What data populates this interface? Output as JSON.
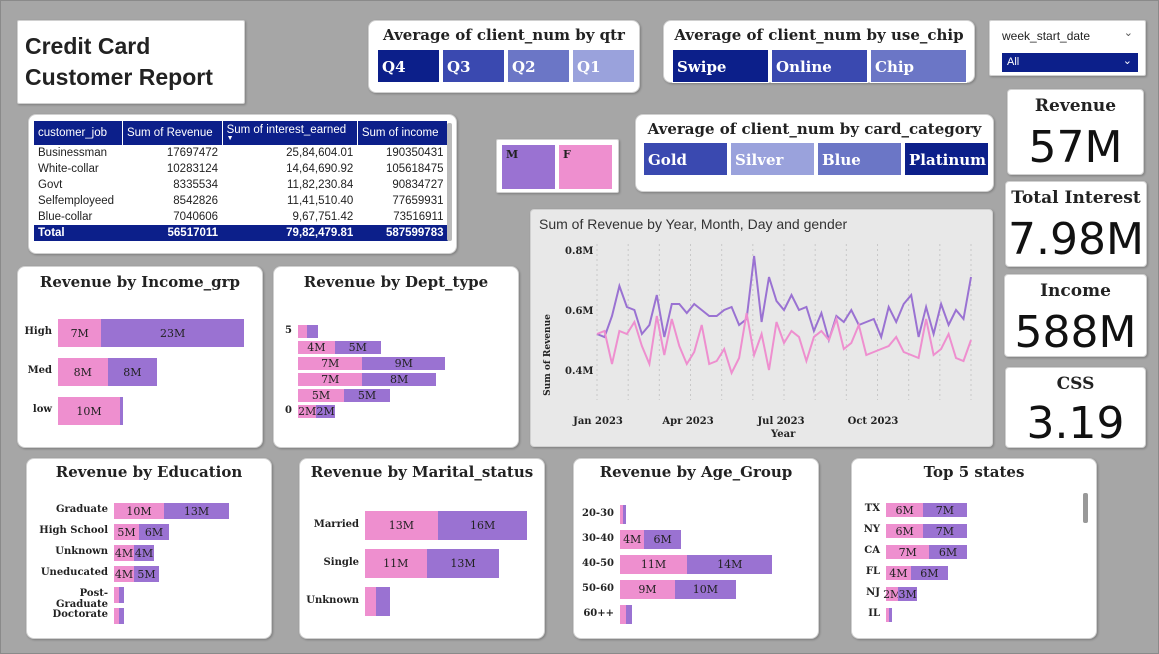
{
  "title": {
    "line1": "Credit Card",
    "line2": "Customer Report"
  },
  "slicers": {
    "qtr": {
      "title": "Average of client_num by qtr",
      "items": [
        "Q4",
        "Q3",
        "Q2",
        "Q1"
      ],
      "colors": [
        "#0c1f8a",
        "#3a49b0",
        "#6b76c6",
        "#9aa2dc"
      ]
    },
    "use_chip": {
      "title": "Average of client_num by use_chip",
      "items": [
        "Swipe",
        "Online",
        "Chip"
      ],
      "colors": [
        "#0c1f8a",
        "#3a49b0",
        "#6b76c6"
      ]
    },
    "card_category": {
      "title": "Average of client_num by card_category",
      "items": [
        "Gold",
        "Silver",
        "Blue",
        "Platinum"
      ],
      "colors": [
        "#3a49b0",
        "#9aa2dc",
        "#6b76c6",
        "#0c1f8a"
      ]
    },
    "gender": {
      "items": [
        "M",
        "F"
      ],
      "colors": [
        "#9a72d2",
        "#ee8fcf"
      ]
    }
  },
  "date_filter": {
    "label": "week_start_date",
    "value": "All"
  },
  "table": {
    "headers": [
      "customer_job",
      "Sum of Revenue",
      "Sum of interest_earned",
      "Sum of income"
    ],
    "rows": [
      [
        "Businessman",
        "17697472",
        "25,84,604.01",
        "190350431"
      ],
      [
        "White-collar",
        "10283124",
        "14,64,690.92",
        "105618475"
      ],
      [
        "Govt",
        "8335534",
        "11,82,230.84",
        "90834727"
      ],
      [
        "Selfemployeed",
        "8542826",
        "11,41,510.40",
        "77659931"
      ],
      [
        "Blue-collar",
        "7040606",
        "9,67,751.42",
        "73516911"
      ]
    ],
    "total": [
      "Total",
      "56517011",
      "79,82,479.81",
      "587599783"
    ]
  },
  "kpis": [
    {
      "label": "Revenue",
      "value": "57M"
    },
    {
      "label": "Total Interest",
      "value": "7.98M"
    },
    {
      "label": "Income",
      "value": "588M"
    },
    {
      "label": "CSS",
      "value": "3.19"
    }
  ],
  "line_chart": {
    "title": "Sum of Revenue by Year, Month, Day and gender",
    "xlabel": "Year",
    "ylabel": "Sum of Revenue",
    "yticks": [
      "0.8M",
      "0.6M",
      "0.4M"
    ],
    "xticks": [
      "Jan 2023",
      "Apr 2023",
      "Jul 2023",
      "Oct 2023"
    ]
  },
  "chart_data": [
    {
      "type": "bar",
      "title": "Revenue by Income_grp",
      "categories": [
        "High",
        "Med",
        "low"
      ],
      "series": [
        {
          "name": "F",
          "values": [
            7,
            8,
            10
          ],
          "labels": [
            "7M",
            "8M",
            "10M"
          ]
        },
        {
          "name": "M",
          "values": [
            23,
            8,
            0.3
          ],
          "labels": [
            "23M",
            "8M",
            ""
          ]
        }
      ]
    },
    {
      "type": "bar",
      "title": "Revenue by Dept_type",
      "categories": [
        "5",
        "",
        "",
        "",
        "",
        "0"
      ],
      "series": [
        {
          "name": "F",
          "values": [
            1,
            4,
            7,
            7,
            5,
            2
          ],
          "labels": [
            "",
            "4M",
            "7M",
            "7M",
            "5M",
            "2M"
          ]
        },
        {
          "name": "M",
          "values": [
            1.2,
            5,
            9,
            8,
            5,
            2
          ],
          "labels": [
            "",
            "5M",
            "9M",
            "8M",
            "5M",
            "2M"
          ]
        }
      ]
    },
    {
      "type": "bar",
      "title": "Revenue by Education",
      "categories": [
        "Graduate",
        "High School",
        "Unknown",
        "Uneducated",
        "Post-Graduate",
        "Doctorate"
      ],
      "series": [
        {
          "name": "F",
          "values": [
            10,
            5,
            4,
            4,
            1,
            1
          ],
          "labels": [
            "10M",
            "5M",
            "4M",
            "4M",
            "",
            ""
          ]
        },
        {
          "name": "M",
          "values": [
            13,
            6,
            4,
            5,
            1,
            1
          ],
          "labels": [
            "13M",
            "6M",
            "4M",
            "5M",
            "",
            ""
          ]
        }
      ]
    },
    {
      "type": "bar",
      "title": "Revenue by Marital_status",
      "categories": [
        "Married",
        "Single",
        "Unknown"
      ],
      "series": [
        {
          "name": "F",
          "values": [
            13,
            11,
            2
          ],
          "labels": [
            "13M",
            "11M",
            ""
          ]
        },
        {
          "name": "M",
          "values": [
            16,
            13,
            2.5
          ],
          "labels": [
            "16M",
            "13M",
            ""
          ]
        }
      ]
    },
    {
      "type": "bar",
      "title": "Revenue by Age_Group",
      "categories": [
        "20-30",
        "30-40",
        "40-50",
        "50-60",
        "60++"
      ],
      "series": [
        {
          "name": "F",
          "values": [
            0.5,
            4,
            11,
            9,
            1
          ],
          "labels": [
            "",
            "4M",
            "11M",
            "9M",
            ""
          ]
        },
        {
          "name": "M",
          "values": [
            0.5,
            6,
            14,
            10,
            1
          ],
          "labels": [
            "",
            "6M",
            "14M",
            "10M",
            ""
          ]
        }
      ]
    },
    {
      "type": "bar",
      "title": "Top 5 states",
      "categories": [
        "TX",
        "NY",
        "CA",
        "FL",
        "NJ",
        "IL"
      ],
      "series": [
        {
          "name": "F",
          "values": [
            6,
            6,
            7,
            4,
            2,
            0.3
          ],
          "labels": [
            "6M",
            "6M",
            "7M",
            "4M",
            "2M",
            ""
          ]
        },
        {
          "name": "M",
          "values": [
            7,
            7,
            6,
            6,
            3,
            0.3
          ],
          "labels": [
            "7M",
            "7M",
            "6M",
            "6M",
            "3M",
            ""
          ]
        }
      ]
    },
    {
      "type": "line",
      "title": "Sum of Revenue by Year, Month, Day and gender",
      "ylim": [
        0.3,
        0.82
      ],
      "series": [
        {
          "name": "M",
          "color": "#9a72d2",
          "values": [
            0.52,
            0.51,
            0.58,
            0.68,
            0.61,
            0.6,
            0.52,
            0.55,
            0.65,
            0.51,
            0.62,
            0.62,
            0.59,
            0.62,
            0.6,
            0.58,
            0.58,
            0.6,
            0.61,
            0.55,
            0.57,
            0.78,
            0.56,
            0.71,
            0.63,
            0.6,
            0.65,
            0.6,
            0.61,
            0.53,
            0.59,
            0.5,
            0.58,
            0.56,
            0.6,
            0.55,
            0.56,
            0.57,
            0.51,
            0.61,
            0.56,
            0.62,
            0.65,
            0.51,
            0.61,
            0.52,
            0.62,
            0.55,
            0.6,
            0.57,
            0.71
          ]
        },
        {
          "name": "F",
          "color": "#ee8fcf",
          "values": [
            0.52,
            0.53,
            0.42,
            0.53,
            0.52,
            0.56,
            0.48,
            0.42,
            0.58,
            0.45,
            0.57,
            0.48,
            0.42,
            0.46,
            0.55,
            0.42,
            0.43,
            0.47,
            0.39,
            0.44,
            0.59,
            0.45,
            0.52,
            0.4,
            0.56,
            0.49,
            0.53,
            0.51,
            0.43,
            0.51,
            0.53,
            0.5,
            0.57,
            0.47,
            0.49,
            0.55,
            0.45,
            0.46,
            0.47,
            0.48,
            0.51,
            0.46,
            0.45,
            0.44,
            0.57,
            0.45,
            0.47,
            0.52,
            0.44,
            0.43,
            0.5
          ]
        }
      ]
    }
  ]
}
